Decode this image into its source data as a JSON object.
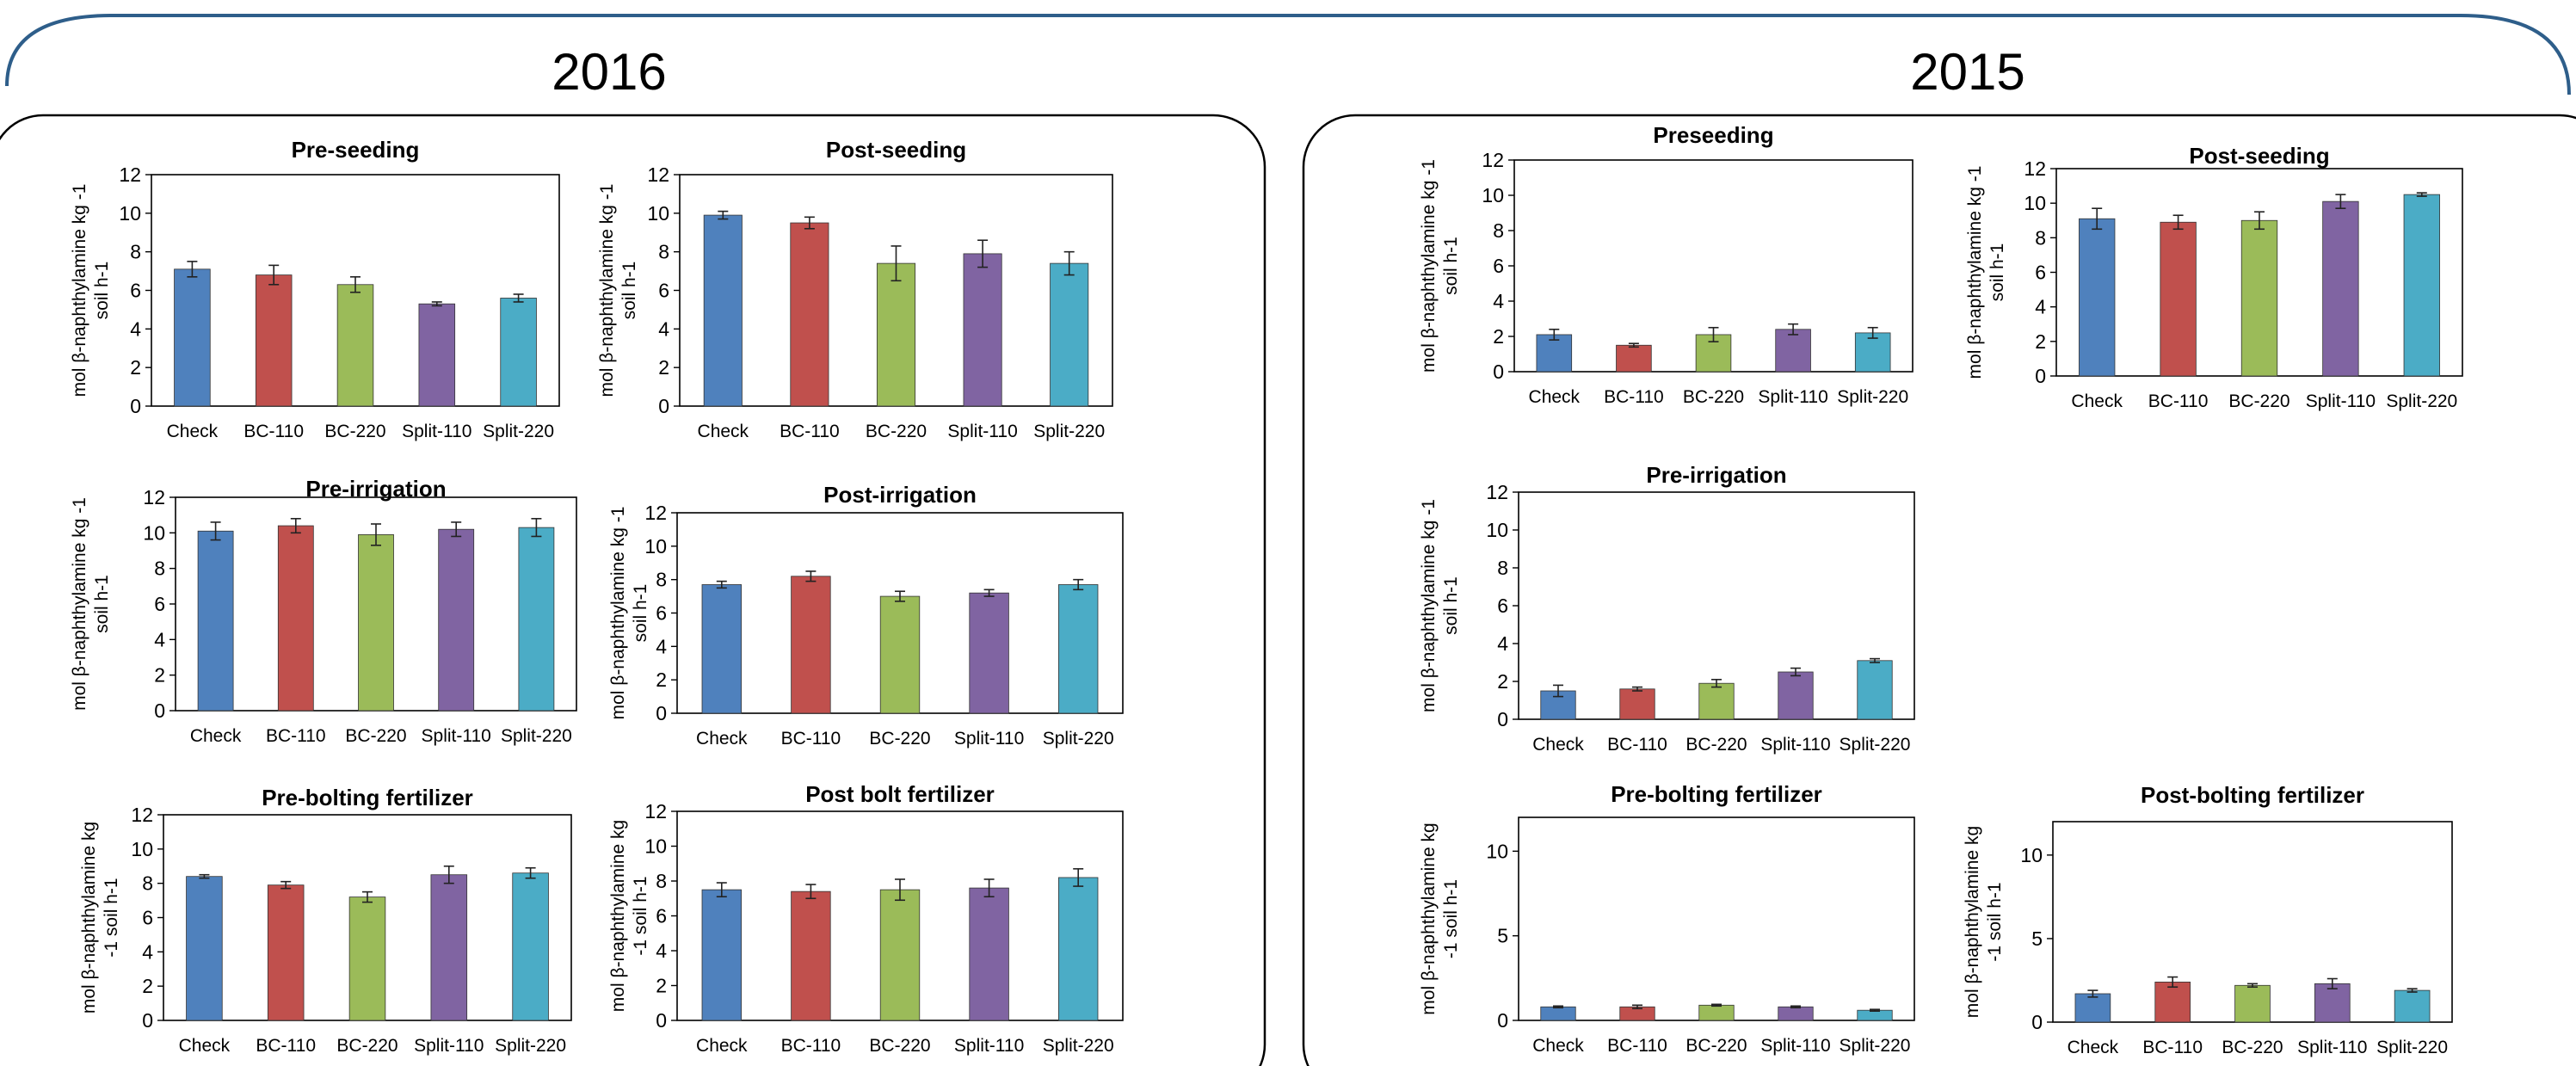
{
  "panels": [
    {
      "year": "2016"
    },
    {
      "year": "2015"
    }
  ],
  "colors": {
    "Check": "#4F81BD",
    "BC-110": "#C0504D",
    "BC-220": "#9BBB59",
    "Split-110": "#8064A2",
    "Split-220": "#4BACC6",
    "frame": "#000000",
    "outer_arc": "#2E5E8A"
  },
  "chart_data": [
    {
      "type": "bar",
      "panel": "2016",
      "title": "Pre-seeding",
      "categories": [
        "Check",
        "BC-110",
        "BC-220",
        "Split-110",
        "Split-220"
      ],
      "values": [
        7.1,
        6.8,
        6.3,
        5.3,
        5.6
      ],
      "errors": [
        0.4,
        0.5,
        0.4,
        0.1,
        0.2
      ],
      "ylabel_lines": [
        "mol β-naphthylamine kg -1",
        "soil h-1"
      ],
      "ylim": [
        0,
        12
      ],
      "yticks": [
        0,
        2,
        4,
        6,
        8,
        10,
        12
      ]
    },
    {
      "type": "bar",
      "panel": "2016",
      "title": "Post-seeding",
      "categories": [
        "Check",
        "BC-110",
        "BC-220",
        "Split-110",
        "Split-220"
      ],
      "values": [
        9.9,
        9.5,
        7.4,
        7.9,
        7.4
      ],
      "errors": [
        0.2,
        0.3,
        0.9,
        0.7,
        0.6
      ],
      "ylabel_lines": [
        "mol β-naphthylamine kg -1",
        "soil h-1"
      ],
      "ylim": [
        0,
        12
      ],
      "yticks": [
        0,
        2,
        4,
        6,
        8,
        10,
        12
      ]
    },
    {
      "type": "bar",
      "panel": "2016",
      "title": "Pre-irrigation",
      "categories": [
        "Check",
        "BC-110",
        "BC-220",
        "Split-110",
        "Split-220"
      ],
      "values": [
        10.1,
        10.4,
        9.9,
        10.2,
        10.3
      ],
      "errors": [
        0.5,
        0.4,
        0.6,
        0.4,
        0.5
      ],
      "ylabel_lines": [
        "mol β-naphthylamine kg -1",
        "soil h-1"
      ],
      "ylim": [
        0,
        12
      ],
      "yticks": [
        0,
        2,
        4,
        6,
        8,
        10,
        12
      ]
    },
    {
      "type": "bar",
      "panel": "2016",
      "title": "Post-irrigation",
      "categories": [
        "Check",
        "BC-110",
        "BC-220",
        "Split-110",
        "Split-220"
      ],
      "values": [
        7.7,
        8.2,
        7.0,
        7.2,
        7.7
      ],
      "errors": [
        0.2,
        0.3,
        0.3,
        0.2,
        0.3
      ],
      "ylabel_lines": [
        "mol β-naphthylamine kg -1",
        "soil h-1"
      ],
      "ylim": [
        0,
        12
      ],
      "yticks": [
        0,
        2,
        4,
        6,
        8,
        10,
        12
      ]
    },
    {
      "type": "bar",
      "panel": "2016",
      "title": "Pre-bolting fertilizer",
      "categories": [
        "Check",
        "BC-110",
        "BC-220",
        "Split-110",
        "Split-220"
      ],
      "values": [
        8.4,
        7.9,
        7.2,
        8.5,
        8.6
      ],
      "errors": [
        0.1,
        0.2,
        0.3,
        0.5,
        0.3
      ],
      "ylabel_lines": [
        "mol β-naphthylamine kg",
        "-1 soil h-1"
      ],
      "ylim": [
        0,
        12
      ],
      "yticks": [
        0,
        2,
        4,
        6,
        8,
        10,
        12
      ]
    },
    {
      "type": "bar",
      "panel": "2016",
      "title": "Post bolt fertilizer",
      "categories": [
        "Check",
        "BC-110",
        "BC-220",
        "Split-110",
        "Split-220"
      ],
      "values": [
        7.5,
        7.4,
        7.5,
        7.6,
        8.2
      ],
      "errors": [
        0.4,
        0.4,
        0.6,
        0.5,
        0.5
      ],
      "ylabel_lines": [
        "mol β-naphthylamine kg",
        "-1 soil h-1"
      ],
      "ylim": [
        0,
        12
      ],
      "yticks": [
        0,
        2,
        4,
        6,
        8,
        10,
        12
      ]
    },
    {
      "type": "bar",
      "panel": "2015",
      "title": "Preseeding",
      "categories": [
        "Check",
        "BC-110",
        "BC-220",
        "Split-110",
        "Split-220"
      ],
      "values": [
        2.1,
        1.5,
        2.1,
        2.4,
        2.2
      ],
      "errors": [
        0.3,
        0.1,
        0.4,
        0.3,
        0.3
      ],
      "ylabel_lines": [
        "mol β-naphthylamine kg -1",
        "soil h-1"
      ],
      "ylim": [
        0,
        12
      ],
      "yticks": [
        0,
        2,
        4,
        6,
        8,
        10,
        12
      ]
    },
    {
      "type": "bar",
      "panel": "2015",
      "title": "Post-seeding",
      "categories": [
        "Check",
        "BC-110",
        "BC-220",
        "Split-110",
        "Split-220"
      ],
      "values": [
        9.1,
        8.9,
        9.0,
        10.1,
        10.5
      ],
      "errors": [
        0.6,
        0.4,
        0.5,
        0.4,
        0.1
      ],
      "ylabel_lines": [
        "mol β-naphthylamine kg -1",
        "soil h-1"
      ],
      "ylim": [
        0,
        12
      ],
      "yticks": [
        0,
        2,
        4,
        6,
        8,
        10,
        12
      ]
    },
    {
      "type": "bar",
      "panel": "2015",
      "title": "Pre-irrigation",
      "categories": [
        "Check",
        "BC-110",
        "BC-220",
        "Split-110",
        "Split-220"
      ],
      "values": [
        1.5,
        1.6,
        1.9,
        2.5,
        3.1
      ],
      "errors": [
        0.3,
        0.1,
        0.2,
        0.2,
        0.1
      ],
      "ylabel_lines": [
        "mol β-naphthylamine kg -1",
        "soil h-1"
      ],
      "ylim": [
        0,
        12
      ],
      "yticks": [
        0,
        2,
        4,
        6,
        8,
        10,
        12
      ]
    },
    {
      "type": "bar",
      "panel": "2015",
      "title": "Pre-bolting fertilizer",
      "categories": [
        "Check",
        "BC-110",
        "BC-220",
        "Split-110",
        "Split-220"
      ],
      "values": [
        0.8,
        0.8,
        0.9,
        0.8,
        0.6
      ],
      "errors": [
        0.05,
        0.1,
        0.05,
        0.05,
        0.05
      ],
      "ylabel_lines": [
        "mol β-naphthylamine kg",
        "-1 soil h-1"
      ],
      "ylim": [
        0,
        12
      ],
      "yticks": [
        0,
        5,
        10
      ]
    },
    {
      "type": "bar",
      "panel": "2015",
      "title": "Post-bolting fertilizer",
      "categories": [
        "Check",
        "BC-110",
        "BC-220",
        "Split-110",
        "Split-220"
      ],
      "values": [
        1.7,
        2.4,
        2.2,
        2.3,
        1.9
      ],
      "errors": [
        0.2,
        0.3,
        0.1,
        0.3,
        0.1
      ],
      "ylabel_lines": [
        "mol β-naphthylamine kg",
        "-1 soil h-1"
      ],
      "ylim": [
        0,
        12
      ],
      "yticks": [
        0,
        5,
        10
      ]
    }
  ]
}
